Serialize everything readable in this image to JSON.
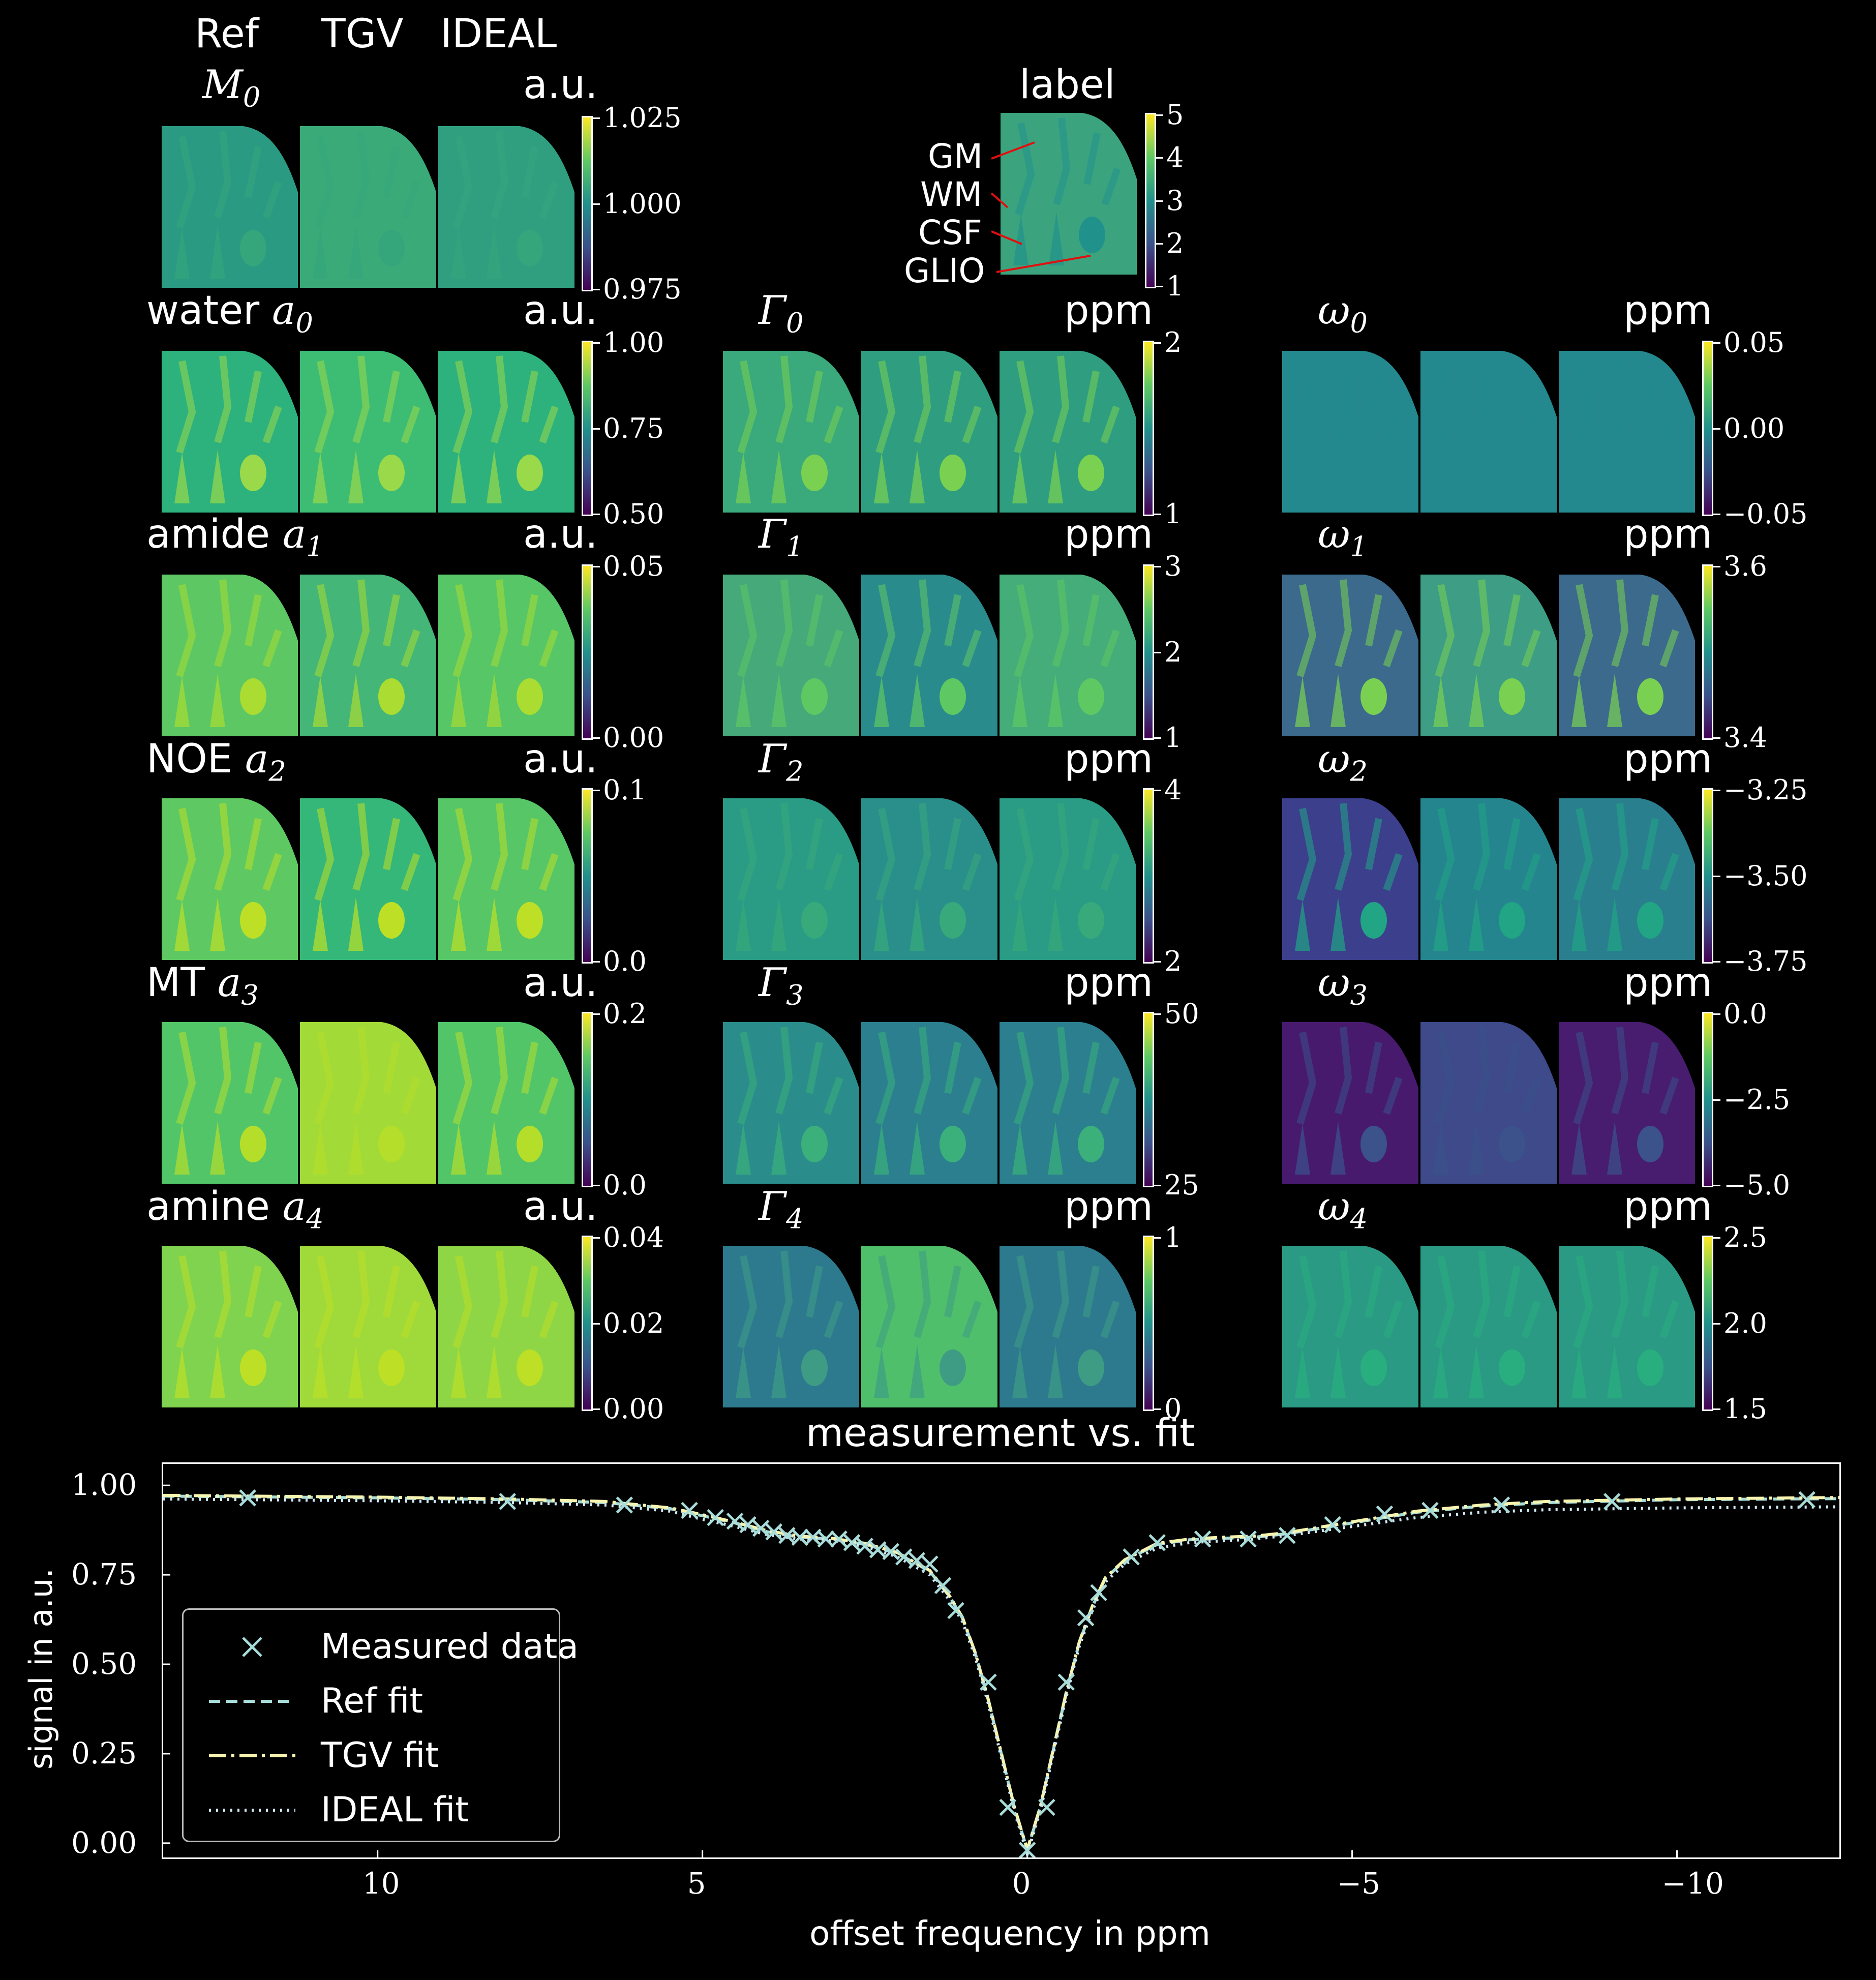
{
  "header": {
    "col_ref": "Ref",
    "col_tgv": "TGV",
    "col_ideal": "IDEAL"
  },
  "panels": [
    {
      "id": "M0",
      "title": "M",
      "sub": "0",
      "prefix": "",
      "unit": "a.u.",
      "col": 0,
      "row": 0,
      "ticks": [
        "1.025",
        "1.000",
        "0.975"
      ]
    },
    {
      "id": "label",
      "title": "label",
      "sub": "",
      "prefix": "",
      "unit": "",
      "col": 1,
      "row": 0,
      "ticks": [
        "5",
        "4",
        "3",
        "2",
        "1"
      ]
    },
    {
      "id": "a0",
      "title": "a",
      "sub": "0",
      "prefix": "water ",
      "unit": "a.u.",
      "col": 0,
      "row": 1,
      "ticks": [
        "1.00",
        "0.75",
        "0.50"
      ]
    },
    {
      "id": "G0",
      "title": "Γ",
      "sub": "0",
      "prefix": "",
      "unit": "ppm",
      "col": 1,
      "row": 1,
      "ticks": [
        "2",
        "1"
      ]
    },
    {
      "id": "w0",
      "title": "ω",
      "sub": "0",
      "prefix": "",
      "unit": "ppm",
      "col": 2,
      "row": 1,
      "ticks": [
        "0.05",
        "0.00",
        "−0.05"
      ]
    },
    {
      "id": "a1",
      "title": "a",
      "sub": "1",
      "prefix": "amide ",
      "unit": "a.u.",
      "col": 0,
      "row": 2,
      "ticks": [
        "0.05",
        "0.00"
      ]
    },
    {
      "id": "G1",
      "title": "Γ",
      "sub": "1",
      "prefix": "",
      "unit": "ppm",
      "col": 1,
      "row": 2,
      "ticks": [
        "3",
        "2",
        "1"
      ]
    },
    {
      "id": "w1",
      "title": "ω",
      "sub": "1",
      "prefix": "",
      "unit": "ppm",
      "col": 2,
      "row": 2,
      "ticks": [
        "3.6",
        "3.4"
      ]
    },
    {
      "id": "a2",
      "title": "a",
      "sub": "2",
      "prefix": "NOE ",
      "unit": "a.u.",
      "col": 0,
      "row": 3,
      "ticks": [
        "0.1",
        "0.0"
      ]
    },
    {
      "id": "G2",
      "title": "Γ",
      "sub": "2",
      "prefix": "",
      "unit": "ppm",
      "col": 1,
      "row": 3,
      "ticks": [
        "4",
        "2"
      ]
    },
    {
      "id": "w2",
      "title": "ω",
      "sub": "2",
      "prefix": "",
      "unit": "ppm",
      "col": 2,
      "row": 3,
      "ticks": [
        "−3.25",
        "−3.50",
        "−3.75"
      ]
    },
    {
      "id": "a3",
      "title": "a",
      "sub": "3",
      "prefix": "MT ",
      "unit": "a.u.",
      "col": 0,
      "row": 4,
      "ticks": [
        "0.2",
        "0.0"
      ]
    },
    {
      "id": "G3",
      "title": "Γ",
      "sub": "3",
      "prefix": "",
      "unit": "ppm",
      "col": 1,
      "row": 4,
      "ticks": [
        "50",
        "25"
      ]
    },
    {
      "id": "w3",
      "title": "ω",
      "sub": "3",
      "prefix": "",
      "unit": "ppm",
      "col": 2,
      "row": 4,
      "ticks": [
        "0.0",
        "−2.5",
        "−5.0"
      ]
    },
    {
      "id": "a4",
      "title": "a",
      "sub": "4",
      "prefix": "amine ",
      "unit": "a.u.",
      "col": 0,
      "row": 5,
      "ticks": [
        "0.04",
        "0.02",
        "0.00"
      ]
    },
    {
      "id": "G4",
      "title": "Γ",
      "sub": "4",
      "prefix": "",
      "unit": "ppm",
      "col": 1,
      "row": 5,
      "ticks": [
        "1",
        "0"
      ]
    },
    {
      "id": "w4",
      "title": "ω",
      "sub": "4",
      "prefix": "",
      "unit": "ppm",
      "col": 2,
      "row": 5,
      "ticks": [
        "2.5",
        "2.0",
        "1.5"
      ]
    }
  ],
  "label_annotations": [
    "GM",
    "WM",
    "CSF",
    "GLIO"
  ],
  "chart_data": {
    "type": "line",
    "title": "measurement vs. fit",
    "xlabel": "offset frequency in ppm",
    "ylabel": "signal in a.u.",
    "xlim": [
      13.3,
      -12.5
    ],
    "ylim": [
      -0.04,
      1.06
    ],
    "x_reversed": true,
    "xticks": [
      10,
      5,
      0,
      -5,
      -10
    ],
    "xtick_labels": [
      "10",
      "5",
      "0",
      "−5",
      "−10"
    ],
    "yticks": [
      0.0,
      0.25,
      0.5,
      0.75,
      1.0
    ],
    "ytick_labels": [
      "0.00",
      "0.25",
      "0.50",
      "0.75",
      "1.00"
    ],
    "legend_position": "lower-left",
    "measured": {
      "name": "Measured data",
      "color": "#a8dcd9",
      "x": [
        12.0,
        8.0,
        6.2,
        5.2,
        4.8,
        4.5,
        4.3,
        4.1,
        3.9,
        3.7,
        3.5,
        3.3,
        3.1,
        2.9,
        2.7,
        2.5,
        2.3,
        2.1,
        1.9,
        1.7,
        1.5,
        1.3,
        1.1,
        0.6,
        0.3,
        0.0,
        -0.3,
        -0.6,
        -0.9,
        -1.1,
        -1.6,
        -2.0,
        -2.7,
        -3.4,
        -4.0,
        -4.7,
        -5.5,
        -6.2,
        -7.3,
        -9.0,
        -12.0
      ],
      "y": [
        0.965,
        0.955,
        0.945,
        0.93,
        0.91,
        0.9,
        0.89,
        0.88,
        0.87,
        0.86,
        0.855,
        0.855,
        0.85,
        0.85,
        0.84,
        0.83,
        0.82,
        0.815,
        0.8,
        0.79,
        0.78,
        0.72,
        0.65,
        0.45,
        0.1,
        -0.02,
        0.1,
        0.45,
        0.63,
        0.7,
        0.8,
        0.84,
        0.85,
        0.85,
        0.86,
        0.89,
        0.92,
        0.93,
        0.945,
        0.955,
        0.96
      ]
    },
    "series": [
      {
        "name": "Ref fit",
        "color": "#a8dcd9",
        "dash": "22,12",
        "x": [
          13.3,
          12.0,
          10.0,
          8.0,
          6.5,
          5.5,
          5.0,
          4.5,
          4.0,
          3.5,
          3.0,
          2.5,
          2.0,
          1.5,
          1.2,
          1.0,
          0.8,
          0.6,
          0.4,
          0.2,
          0.0,
          -0.2,
          -0.4,
          -0.6,
          -0.8,
          -1.0,
          -1.2,
          -1.5,
          -2.0,
          -2.5,
          -3.0,
          -3.5,
          -4.0,
          -5.0,
          -6.0,
          -7.0,
          -8.0,
          -10.0,
          -12.5
        ],
        "y": [
          0.97,
          0.968,
          0.965,
          0.96,
          0.952,
          0.935,
          0.915,
          0.895,
          0.87,
          0.855,
          0.85,
          0.835,
          0.81,
          0.76,
          0.69,
          0.63,
          0.53,
          0.4,
          0.25,
          0.1,
          -0.02,
          0.1,
          0.26,
          0.42,
          0.56,
          0.66,
          0.74,
          0.79,
          0.835,
          0.848,
          0.852,
          0.855,
          0.865,
          0.895,
          0.925,
          0.942,
          0.952,
          0.96,
          0.963
        ]
      },
      {
        "name": "TGV fit",
        "color": "#f7f4b0",
        "dash": "34,10,6,10",
        "x": [
          13.3,
          12.0,
          10.0,
          8.0,
          6.5,
          5.5,
          5.0,
          4.5,
          4.0,
          3.5,
          3.0,
          2.5,
          2.0,
          1.5,
          1.2,
          1.0,
          0.8,
          0.6,
          0.4,
          0.2,
          0.0,
          -0.2,
          -0.4,
          -0.6,
          -0.8,
          -1.0,
          -1.2,
          -1.5,
          -2.0,
          -2.5,
          -3.0,
          -3.5,
          -4.0,
          -5.0,
          -6.0,
          -7.0,
          -8.0,
          -10.0,
          -12.5
        ],
        "y": [
          0.972,
          0.97,
          0.967,
          0.962,
          0.955,
          0.937,
          0.918,
          0.897,
          0.873,
          0.858,
          0.852,
          0.838,
          0.812,
          0.762,
          0.692,
          0.632,
          0.532,
          0.402,
          0.252,
          0.102,
          -0.018,
          0.102,
          0.262,
          0.422,
          0.562,
          0.662,
          0.742,
          0.792,
          0.838,
          0.85,
          0.855,
          0.858,
          0.868,
          0.898,
          0.928,
          0.945,
          0.955,
          0.962,
          0.966
        ]
      },
      {
        "name": "IDEAL fit",
        "color": "#cfe9f5",
        "dash": "4,10",
        "x": [
          13.3,
          12.0,
          10.0,
          8.0,
          6.5,
          5.5,
          5.0,
          4.5,
          4.0,
          3.5,
          3.0,
          2.5,
          2.0,
          1.5,
          1.2,
          1.0,
          0.8,
          0.6,
          0.4,
          0.2,
          0.0,
          -0.2,
          -0.4,
          -0.6,
          -0.8,
          -1.0,
          -1.2,
          -1.5,
          -2.0,
          -2.5,
          -3.0,
          -3.5,
          -4.0,
          -5.0,
          -6.0,
          -7.0,
          -8.0,
          -10.0,
          -12.5
        ],
        "y": [
          0.962,
          0.96,
          0.957,
          0.952,
          0.945,
          0.928,
          0.905,
          0.885,
          0.862,
          0.85,
          0.845,
          0.83,
          0.8,
          0.75,
          0.68,
          0.62,
          0.52,
          0.39,
          0.24,
          0.09,
          -0.03,
          0.09,
          0.25,
          0.41,
          0.55,
          0.65,
          0.73,
          0.78,
          0.825,
          0.84,
          0.845,
          0.85,
          0.86,
          0.885,
          0.91,
          0.925,
          0.932,
          0.937,
          0.94
        ]
      }
    ]
  }
}
